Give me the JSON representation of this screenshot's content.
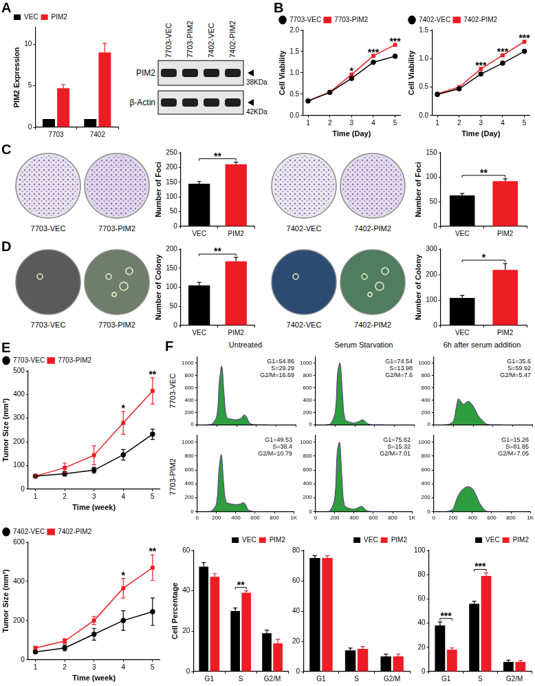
{
  "blot": {
    "lanes": [
      "7703-VEC",
      "7703-PIM2",
      "7402-VEC",
      "7402-PIM2"
    ],
    "bands": [
      {
        "label": "PIM2",
        "size": "38KDa"
      },
      {
        "label": "β-Actin",
        "size": "42KDa"
      }
    ]
  },
  "dishes": [
    [
      "7703-VEC",
      "7703-PIM2",
      "7402-VEC",
      "7402-PIM2"
    ],
    [
      "7703-VEC",
      "7703-PIM2",
      "7402-VEC",
      "7402-PIM2"
    ]
  ],
  "flow": {
    "columns": [
      "Untreated",
      "Serum Starvation",
      "6h after serum addition"
    ],
    "rows": [
      "7703-VEC",
      "7703-PIM2"
    ]
  },
  "chart_data": [
    {
      "panel": "A",
      "type": "bar",
      "categories": [
        "7703",
        "7402"
      ],
      "series": [
        {
          "name": "VEC",
          "color": "#000000",
          "values": [
            1,
            1
          ]
        },
        {
          "name": "PIM2",
          "color": "#ee1c25",
          "values": [
            4.7,
            9.0
          ],
          "errors": [
            0.45,
            1.1
          ]
        }
      ],
      "y_label": "PIM2 Expression",
      "ylim": [
        0,
        12
      ],
      "yticks": [
        0,
        5,
        10
      ],
      "grid": false,
      "legend": "top-left"
    },
    {
      "panel": "B",
      "type": "line",
      "x": [
        1,
        2,
        3,
        4,
        5
      ],
      "xlim": [
        0.75,
        5.25
      ],
      "xticks": [
        1,
        2,
        3,
        4,
        5
      ],
      "x_label": "Time (Day)",
      "y_label": "Cell Viability",
      "ylim": [
        0,
        2
      ],
      "yticks": [
        {
          "value": 0,
          "label": "0.0"
        },
        0.5,
        {
          "value": 1,
          "label": "1.0"
        },
        1.5,
        {
          "value": 2,
          "label": "2.0"
        }
      ],
      "grid": false,
      "legend": "top-left",
      "series": [
        {
          "name": "7703-VEC",
          "color": "#000000",
          "marker": "circle",
          "values": [
            0.34,
            0.54,
            0.87,
            1.25,
            1.39
          ]
        },
        {
          "name": "7703-PIM2",
          "color": "#ee1c25",
          "marker": "square",
          "values": [
            0.34,
            0.55,
            0.96,
            1.4,
            1.66
          ]
        }
      ],
      "annotations": [
        {
          "at": 3,
          "text": "*"
        },
        {
          "at": 4,
          "text": "***"
        },
        {
          "at": 5,
          "text": "***"
        }
      ]
    },
    {
      "type": "line",
      "x": [
        1,
        2,
        3,
        4,
        5
      ],
      "xlim": [
        0.75,
        5.25
      ],
      "xticks": [
        1,
        2,
        3,
        4,
        5
      ],
      "x_label": "Time (Day)",
      "y_label": "Cell Viability",
      "ylim": [
        0,
        1.5
      ],
      "yticks": [
        {
          "value": 0,
          "label": "0.0"
        },
        0.5,
        {
          "value": 1,
          "label": "1.0"
        },
        1.5
      ],
      "grid": false,
      "legend": "top-left",
      "series": [
        {
          "name": "7402-VEC",
          "color": "#000000",
          "marker": "circle",
          "values": [
            0.37,
            0.47,
            0.73,
            0.92,
            1.13
          ]
        },
        {
          "name": "7402-PIM2",
          "color": "#ee1c25",
          "marker": "square",
          "values": [
            0.38,
            0.5,
            0.82,
            1.06,
            1.3
          ]
        }
      ],
      "annotations": [
        {
          "at": 3,
          "text": "***"
        },
        {
          "at": 4,
          "text": "***"
        },
        {
          "at": 5,
          "text": "***"
        }
      ]
    },
    {
      "panel": "C",
      "type": "bar",
      "categories": [
        "VEC",
        "PIM2"
      ],
      "values": [
        145,
        211
      ],
      "errors": [
        8,
        7
      ],
      "colors": [
        "#000000",
        "#ee1c25"
      ],
      "y_label": "Number of Foci",
      "ylim": [
        0,
        250
      ],
      "yticks": [
        0,
        50,
        100,
        150,
        200,
        250
      ],
      "grid": false,
      "annotations": [
        {
          "text": "**"
        }
      ]
    },
    {
      "type": "bar",
      "categories": [
        "VEC",
        "PIM2"
      ],
      "values": [
        63,
        92
      ],
      "errors": [
        4,
        5
      ],
      "colors": [
        "#000000",
        "#ee1c25"
      ],
      "y_label": "Number of Foci",
      "ylim": [
        0,
        150
      ],
      "yticks": [
        0,
        50,
        100,
        150
      ],
      "grid": false,
      "annotations": [
        {
          "text": "**"
        }
      ]
    },
    {
      "panel": "D",
      "type": "bar",
      "categories": [
        "VEC",
        "PIM2"
      ],
      "values": [
        105,
        168
      ],
      "errors": [
        8,
        10
      ],
      "colors": [
        "#000000",
        "#ee1c25"
      ],
      "y_label": "Number of Colony",
      "ylim": [
        0,
        200
      ],
      "yticks": [
        0,
        50,
        100,
        150,
        200
      ],
      "grid": false,
      "annotations": [
        {
          "text": "**"
        }
      ]
    },
    {
      "type": "bar",
      "categories": [
        "VEC",
        "PIM2"
      ],
      "values": [
        108,
        218
      ],
      "errors": [
        10,
        25
      ],
      "colors": [
        "#000000",
        "#ee1c25"
      ],
      "y_label": "Number of Colony",
      "ylim": [
        0,
        300
      ],
      "yticks": [
        0,
        100,
        200,
        300
      ],
      "grid": false,
      "annotations": [
        {
          "text": "*"
        }
      ]
    },
    {
      "panel": "E",
      "type": "line",
      "x": [
        1,
        2,
        3,
        4,
        5
      ],
      "xlim": [
        0.75,
        5.25
      ],
      "xticks": [
        1,
        2,
        3,
        4,
        5
      ],
      "x_label": "Time (week)",
      "y_label": "Tumor Size (mm³)",
      "ylim": [
        0,
        500
      ],
      "yticks": [
        0,
        100,
        200,
        300,
        400,
        500
      ],
      "grid": false,
      "legend": "top-left",
      "series": [
        {
          "name": "7703-VEC",
          "color": "#000000",
          "marker": "circle",
          "values": [
            55,
            65,
            80,
            145,
            232
          ],
          "errors": [
            5,
            10,
            12,
            22,
            22
          ]
        },
        {
          "name": "7703-PIM2",
          "color": "#ee1c25",
          "marker": "square",
          "values": [
            55,
            90,
            143,
            280,
            415
          ],
          "errors": [
            6,
            20,
            40,
            48,
            55
          ]
        }
      ],
      "annotations": [
        {
          "at": 4,
          "text": "*"
        },
        {
          "at": 5,
          "text": "**"
        }
      ]
    },
    {
      "type": "line",
      "x": [
        1,
        2,
        3,
        4,
        5
      ],
      "xlim": [
        0.75,
        5.25
      ],
      "xticks": [
        1,
        2,
        3,
        4,
        5
      ],
      "x_label": "Time (week)",
      "y_label": "Tumor Size (mm³)",
      "ylim": [
        0,
        600
      ],
      "yticks": [
        0,
        200,
        400,
        600
      ],
      "grid": false,
      "legend": "top-left",
      "series": [
        {
          "name": "7402-VEC",
          "color": "#000000",
          "marker": "circle",
          "values": [
            40,
            60,
            130,
            200,
            245
          ],
          "errors": [
            6,
            15,
            30,
            50,
            70
          ]
        },
        {
          "name": "7402-PIM2",
          "color": "#ee1c25",
          "marker": "square",
          "values": [
            60,
            95,
            200,
            365,
            470
          ],
          "errors": [
            8,
            12,
            20,
            50,
            65
          ]
        }
      ],
      "annotations": [
        {
          "at": 4,
          "text": "*"
        },
        {
          "at": 5,
          "text": "**"
        }
      ]
    },
    {
      "panel": "F",
      "type": "area",
      "x": [
        100,
        150,
        200,
        225,
        250,
        275,
        300,
        350,
        400,
        450,
        475,
        500,
        525,
        550,
        600,
        700
      ],
      "values": [
        0,
        10,
        150,
        700,
        950,
        450,
        120,
        90,
        80,
        110,
        160,
        130,
        40,
        10,
        0,
        0
      ],
      "color": "#2e9d3e",
      "xlim": [
        0,
        1000
      ],
      "xticks": [
        0,
        200,
        400,
        600,
        800,
        {
          "value": 1000,
          "label": "1K"
        }
      ],
      "ylim": [
        0,
        1100
      ],
      "yticks": [
        0,
        200,
        400,
        600,
        800,
        1000
      ],
      "grid": false,
      "tick_labels": "y",
      "annotations": [
        "G1=54.86",
        "S=29.29",
        "G2/M=16.69"
      ]
    },
    {
      "type": "area",
      "x": [
        100,
        150,
        200,
        225,
        250,
        275,
        300,
        350,
        400,
        450,
        475,
        500,
        525,
        550,
        600,
        700
      ],
      "values": [
        0,
        10,
        200,
        850,
        1000,
        480,
        90,
        40,
        30,
        60,
        80,
        60,
        20,
        5,
        0,
        0
      ],
      "color": "#2e9d3e",
      "xlim": [
        0,
        1000
      ],
      "xticks": [
        0,
        200,
        400,
        600,
        800,
        {
          "value": 1000,
          "label": "1K"
        }
      ],
      "ylim": [
        0,
        1100
      ],
      "yticks": [
        0,
        200,
        400,
        600,
        800,
        1000
      ],
      "grid": false,
      "tick_labels": "y",
      "annotations": [
        "G1=74.54",
        "S=13.98",
        "G2/M=7.6"
      ]
    },
    {
      "type": "area",
      "x": [
        100,
        150,
        200,
        225,
        250,
        275,
        300,
        350,
        400,
        450,
        475,
        500,
        525,
        550,
        600,
        700
      ],
      "values": [
        0,
        5,
        60,
        250,
        420,
        380,
        330,
        380,
        300,
        150,
        100,
        60,
        20,
        5,
        0,
        0
      ],
      "color": "#2e9d3e",
      "xlim": [
        0,
        1000
      ],
      "xticks": [
        0,
        200,
        400,
        600,
        800,
        {
          "value": 1000,
          "label": "1K"
        }
      ],
      "ylim": [
        0,
        1100
      ],
      "yticks": [
        0,
        200,
        400,
        600,
        800,
        1000
      ],
      "grid": false,
      "tick_labels": "y",
      "annotations": [
        "G1=35.6",
        "S=59.92",
        "G2/M=5.47"
      ]
    },
    {
      "type": "area",
      "x": [
        100,
        150,
        200,
        225,
        250,
        275,
        300,
        350,
        400,
        450,
        475,
        500,
        525,
        550,
        600,
        700
      ],
      "values": [
        0,
        10,
        120,
        600,
        820,
        400,
        140,
        110,
        100,
        110,
        130,
        100,
        30,
        10,
        0,
        0
      ],
      "color": "#2e9d3e",
      "xlim": [
        0,
        1000
      ],
      "xticks": [
        0,
        200,
        400,
        600,
        800,
        {
          "value": 1000,
          "label": "1K"
        }
      ],
      "ylim": [
        0,
        1100
      ],
      "yticks": [
        0,
        200,
        400,
        600,
        800,
        1000
      ],
      "grid": false,
      "annotations": [
        "G1=49.53",
        "S=38.4",
        "G2/M=10.79"
      ]
    },
    {
      "type": "area",
      "x": [
        100,
        150,
        200,
        225,
        250,
        275,
        300,
        350,
        400,
        450,
        475,
        500,
        525,
        550,
        600,
        700
      ],
      "values": [
        0,
        10,
        200,
        860,
        1000,
        470,
        90,
        45,
        35,
        60,
        75,
        55,
        20,
        5,
        0,
        0
      ],
      "color": "#2e9d3e",
      "xlim": [
        0,
        1000
      ],
      "xticks": [
        0,
        200,
        400,
        600,
        800,
        {
          "value": 1000,
          "label": "1K"
        }
      ],
      "ylim": [
        0,
        1100
      ],
      "yticks": [
        0,
        200,
        400,
        600,
        800,
        1000
      ],
      "grid": false,
      "annotations": [
        "G1=75.62",
        "S=15.32",
        "G2/M=7.01"
      ]
    },
    {
      "type": "area",
      "x": [
        100,
        150,
        200,
        225,
        250,
        275,
        300,
        350,
        400,
        450,
        475,
        500,
        525,
        550,
        600,
        700
      ],
      "values": [
        0,
        5,
        40,
        130,
        220,
        280,
        320,
        360,
        330,
        200,
        120,
        70,
        25,
        5,
        0,
        0
      ],
      "color": "#2e9d3e",
      "xlim": [
        0,
        1000
      ],
      "xticks": [
        0,
        200,
        400,
        600,
        800,
        {
          "value": 1000,
          "label": "1K"
        }
      ],
      "ylim": [
        0,
        1100
      ],
      "yticks": [
        0,
        200,
        400,
        600,
        800,
        1000
      ],
      "grid": false,
      "annotations": [
        "G1=15.26",
        "S=81.85",
        "G2/M=7.05"
      ]
    },
    {
      "type": "bar",
      "categories": [
        "G1",
        "S",
        "G2/M"
      ],
      "series": [
        {
          "name": "VEC",
          "color": "#000000",
          "values": [
            52,
            30,
            19
          ],
          "errors": [
            2,
            1.5,
            1.5
          ]
        },
        {
          "name": "PIM2",
          "color": "#ee1c25",
          "values": [
            47,
            39,
            14
          ],
          "errors": [
            1.5,
            1,
            2
          ]
        }
      ],
      "y_label": "Cell Percentage",
      "ylim": [
        0,
        60
      ],
      "yticks": [
        0,
        20,
        40,
        60
      ],
      "grid": false,
      "legend": "top-right",
      "annotations": [
        {
          "at": "S",
          "text": "**"
        }
      ]
    },
    {
      "type": "bar",
      "categories": [
        "G1",
        "S",
        "G2/M"
      ],
      "series": [
        {
          "name": "VEC",
          "color": "#000000",
          "values": [
            75,
            14,
            10
          ],
          "errors": [
            1.5,
            1.5,
            1.5
          ]
        },
        {
          "name": "PIM2",
          "color": "#ee1c25",
          "values": [
            75,
            15,
            10
          ],
          "errors": [
            1.5,
            1.5,
            1.5
          ]
        }
      ],
      "ylim": [
        0,
        80
      ],
      "yticks": [
        0,
        20,
        40,
        60,
        80
      ],
      "grid": false,
      "legend": "top-right"
    },
    {
      "type": "bar",
      "categories": [
        "G1",
        "S",
        "G2/M"
      ],
      "series": [
        {
          "name": "VEC",
          "color": "#000000",
          "values": [
            38,
            56,
            8
          ],
          "errors": [
            3,
            2,
            1.5
          ]
        },
        {
          "name": "PIM2",
          "color": "#ee1c25",
          "values": [
            18,
            79,
            8
          ],
          "errors": [
            1.5,
            2.5,
            1.2
          ]
        }
      ],
      "ylim": [
        0,
        100
      ],
      "yticks": [
        0,
        20,
        40,
        60,
        80,
        100
      ],
      "grid": false,
      "legend": "top-right",
      "annotations": [
        {
          "at": "G1",
          "text": "***"
        },
        {
          "at": "S",
          "text": "***"
        }
      ]
    }
  ]
}
